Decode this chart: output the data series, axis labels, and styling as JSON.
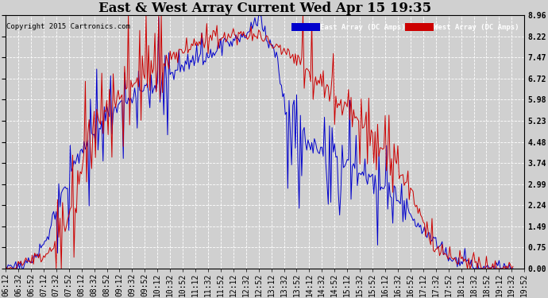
{
  "title": "East & West Array Current Wed Apr 15 19:35",
  "copyright": "Copyright 2015 Cartronics.com",
  "legend_east": "East Array (DC Amps)",
  "legend_west": "West Array (DC Amps)",
  "east_color": "#0000cc",
  "west_color": "#cc0000",
  "legend_east_bg": "#0000cc",
  "legend_west_bg": "#cc0000",
  "background_color": "#d0d0d0",
  "plot_bg_color": "#d0d0d0",
  "grid_color": "#ffffff",
  "ylim": [
    0.0,
    8.96
  ],
  "yticks": [
    0.0,
    0.75,
    1.49,
    2.24,
    2.99,
    3.74,
    4.48,
    5.23,
    5.98,
    6.72,
    7.47,
    8.22,
    8.96
  ],
  "title_fontsize": 12,
  "tick_fontsize": 7,
  "figwidth": 6.9,
  "figheight": 3.75,
  "dpi": 100
}
